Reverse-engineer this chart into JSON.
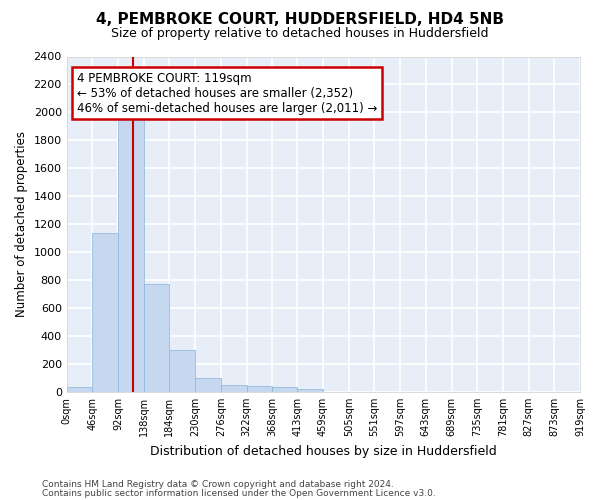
{
  "title": "4, PEMBROKE COURT, HUDDERSFIELD, HD4 5NB",
  "subtitle": "Size of property relative to detached houses in Huddersfield",
  "xlabel": "Distribution of detached houses by size in Huddersfield",
  "ylabel": "Number of detached properties",
  "bar_color": "#c5d8f0",
  "bar_edge_color": "#8ab4d8",
  "background_color": "#e8eef8",
  "grid_color": "white",
  "annotation_text": "4 PEMBROKE COURT: 119sqm\n← 53% of detached houses are smaller (2,352)\n46% of semi-detached houses are larger (2,011) →",
  "annotation_box_color": "white",
  "annotation_box_edge": "#cc0000",
  "vline_x": 119,
  "vline_color": "#cc0000",
  "footer1": "Contains HM Land Registry data © Crown copyright and database right 2024.",
  "footer2": "Contains public sector information licensed under the Open Government Licence v3.0.",
  "bin_edges": [
    0,
    46,
    92,
    138,
    184,
    230,
    276,
    322,
    368,
    413,
    459,
    505,
    551,
    597,
    643,
    689,
    735,
    781,
    827,
    873,
    919
  ],
  "bar_heights": [
    35,
    1140,
    1960,
    770,
    300,
    100,
    50,
    40,
    35,
    20,
    0,
    0,
    0,
    0,
    0,
    0,
    0,
    0,
    0,
    0
  ],
  "ylim": [
    0,
    2400
  ],
  "yticks": [
    0,
    200,
    400,
    600,
    800,
    1000,
    1200,
    1400,
    1600,
    1800,
    2000,
    2200,
    2400
  ]
}
